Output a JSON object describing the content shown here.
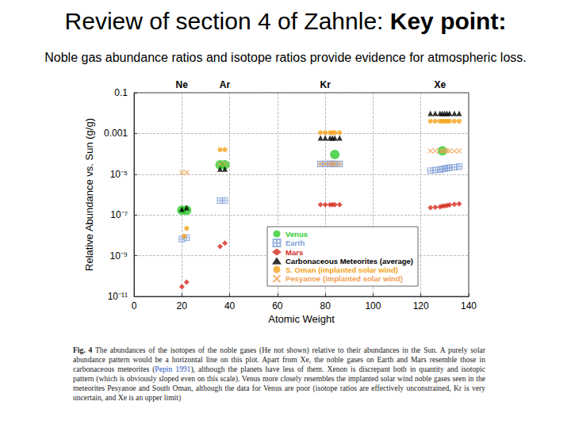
{
  "slide": {
    "title": "Review of section 4 of Zahnle: ",
    "title_bold": "Key point:",
    "subtitle": "Noble gas abundance ratios and isotope ratios provide evidence for atmospheric loss."
  },
  "chart_data": {
    "type": "scatter",
    "x_label": "Atomic Weight",
    "y_label": "Relative Abundance vs. Sun (g/g)",
    "xlim": [
      0,
      140
    ],
    "xticks": [
      0,
      20,
      40,
      60,
      80,
      100,
      120,
      140
    ],
    "ylim": [
      1e-11,
      0.1
    ],
    "yticks": [
      {
        "value": 1e-11,
        "label": "10⁻¹¹"
      },
      {
        "value": 1e-09,
        "label": "10⁻⁹"
      },
      {
        "value": 1e-07,
        "label": "10⁻⁷"
      },
      {
        "value": 1e-05,
        "label": "10⁻⁵"
      },
      0.001,
      0.1
    ],
    "log": "y",
    "grid": true,
    "legend": "lower right",
    "annotations": [
      {
        "text": "Ne",
        "x": 20
      },
      {
        "text": "Ar",
        "x": 38
      },
      {
        "text": "Kr",
        "x": 80
      },
      {
        "text": "Xe",
        "x": 128
      }
    ],
    "series": [
      {
        "name": "Venus",
        "color": "#2ecc2e",
        "marker": "big_circle",
        "x": [
          20,
          22,
          36,
          38,
          84,
          129
        ],
        "values": [
          1.7e-07,
          1.7e-07,
          2.9e-05,
          2.9e-05,
          9.3e-05,
          0.00014
        ]
      },
      {
        "name": "Earth",
        "color": "#7f9fd6",
        "marker": "square_cross",
        "x": [
          20,
          22,
          36,
          38,
          78,
          80,
          82,
          83,
          84,
          86,
          124,
          126,
          128,
          129,
          130,
          131,
          132,
          134,
          136
        ],
        "values": [
          6.5e-09,
          7.6e-09,
          5.1e-07,
          5.1e-07,
          3.2e-05,
          3.2e-05,
          3.2e-05,
          3.2e-05,
          3.2e-05,
          3.2e-05,
          1.5e-05,
          1.6e-05,
          1.7e-05,
          1.8e-05,
          1.9e-05,
          2e-05,
          2.1e-05,
          2.2e-05,
          2.4e-05
        ]
      },
      {
        "name": "Mars",
        "color": "#d62a1e",
        "marker": "diamond",
        "x": [
          20,
          22,
          36,
          38,
          78,
          80,
          82,
          83,
          84,
          86,
          124,
          126,
          128,
          129,
          130,
          131,
          132,
          134,
          136
        ],
        "values": [
          3e-11,
          5e-11,
          2.8e-09,
          4.1e-09,
          3.2e-07,
          3.2e-07,
          3.2e-07,
          3.2e-07,
          3.2e-07,
          3.2e-07,
          2.3e-07,
          2.4e-07,
          2.5e-07,
          2.7e-07,
          2.8e-07,
          2.9e-07,
          3.1e-07,
          3.3e-07,
          3.5e-07
        ]
      },
      {
        "name": "Carbonaceous Meteorites (average)",
        "color": "#000000",
        "marker": "triangle",
        "x": [
          20,
          22,
          36,
          38,
          78,
          80,
          82,
          83,
          84,
          86,
          124,
          126,
          128,
          129,
          130,
          131,
          132,
          134,
          136
        ],
        "values": [
          1.9e-07,
          2.3e-07,
          1.8e-05,
          1.8e-05,
          0.0006,
          0.0006,
          0.0006,
          0.0006,
          0.0006,
          0.0006,
          0.0098,
          0.0098,
          0.0098,
          0.0098,
          0.0098,
          0.0098,
          0.0098,
          0.0098,
          0.0098
        ]
      },
      {
        "name": "S. Oman (implanted solar wind)",
        "color": "#f5a31a",
        "marker": "circle",
        "x": [
          21,
          22,
          36,
          38,
          78,
          80,
          82,
          83,
          84,
          86,
          124,
          126,
          128,
          129,
          130,
          131,
          132,
          134,
          136
        ],
        "values": [
          9e-09,
          2.2e-08,
          0.00016,
          0.00016,
          0.0011,
          0.0011,
          0.0011,
          0.0011,
          0.0011,
          0.0011,
          0.004,
          0.004,
          0.004,
          0.004,
          0.004,
          0.004,
          0.004,
          0.004,
          0.004
        ]
      },
      {
        "name": "Pesyanoe (implanted solar wind)",
        "color": "#f0a050",
        "marker": "x",
        "x": [
          20,
          22,
          36,
          38,
          78,
          80,
          82,
          83,
          84,
          86,
          124,
          126,
          128,
          129,
          130,
          131,
          132,
          134,
          136
        ],
        "values": [
          1.2e-05,
          1.2e-05,
          3.2e-05,
          3.2e-05,
          3.2e-05,
          3.2e-05,
          3.2e-05,
          3.2e-05,
          3.2e-05,
          3.2e-05,
          0.00014,
          0.00014,
          0.00014,
          0.00014,
          0.00014,
          0.00014,
          0.00014,
          0.00014,
          0.00014
        ]
      }
    ]
  },
  "caption": {
    "label": "Fig. 4",
    "text_before": "The abundances of the isotopes of the noble gases (He not shown) relative to their abundances in the Sun. A purely solar abundance pattern would be a horizontal line on this plot. Apart from Xe, the noble gases on Earth and Mars resemble those in carbonaceous meteorites (",
    "citation": "Pepin 1991",
    "text_after": "), although the planets have less of them. Xenon is discrepant both in quantity and isotopic pattern (which is obviously sloped even on this scale). Venus more closely resembles the implanted solar wind noble gases seen in the meteorites Pesyanoe and South Oman, although the data for Venus are poor (isotope ratios are effectively unconstrained, Kr is very uncertain, and Xe is an upper limit)"
  }
}
